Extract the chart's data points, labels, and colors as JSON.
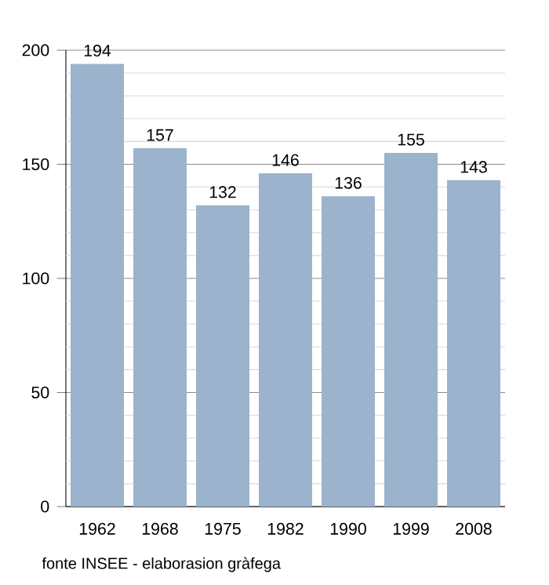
{
  "chart_data": {
    "type": "bar",
    "categories": [
      "1962",
      "1968",
      "1975",
      "1982",
      "1990",
      "1999",
      "2008"
    ],
    "values": [
      194,
      157,
      132,
      146,
      136,
      155,
      143
    ],
    "color": "#9bb3cc",
    "ylim": [
      0,
      200
    ],
    "yticks": [
      0,
      {
        "value": 10,
        "label": null
      },
      {
        "value": 20,
        "label": null
      },
      {
        "value": 30,
        "label": null
      },
      {
        "value": 40,
        "label": null
      },
      50,
      {
        "value": 60,
        "label": null
      },
      {
        "value": 70,
        "label": null
      },
      {
        "value": 80,
        "label": null
      },
      {
        "value": 90,
        "label": null
      },
      100,
      {
        "value": 110,
        "label": null
      },
      {
        "value": 120,
        "label": null
      },
      {
        "value": 130,
        "label": null
      },
      {
        "value": 140,
        "label": null
      },
      150,
      {
        "value": 160,
        "label": null
      },
      {
        "value": 170,
        "label": null
      },
      {
        "value": 180,
        "label": null
      },
      {
        "value": 190,
        "label": null
      },
      200
    ],
    "grid": "y",
    "data_labels": true,
    "annotations": [
      "fonte INSEE - elaborasion gràfega"
    ]
  }
}
